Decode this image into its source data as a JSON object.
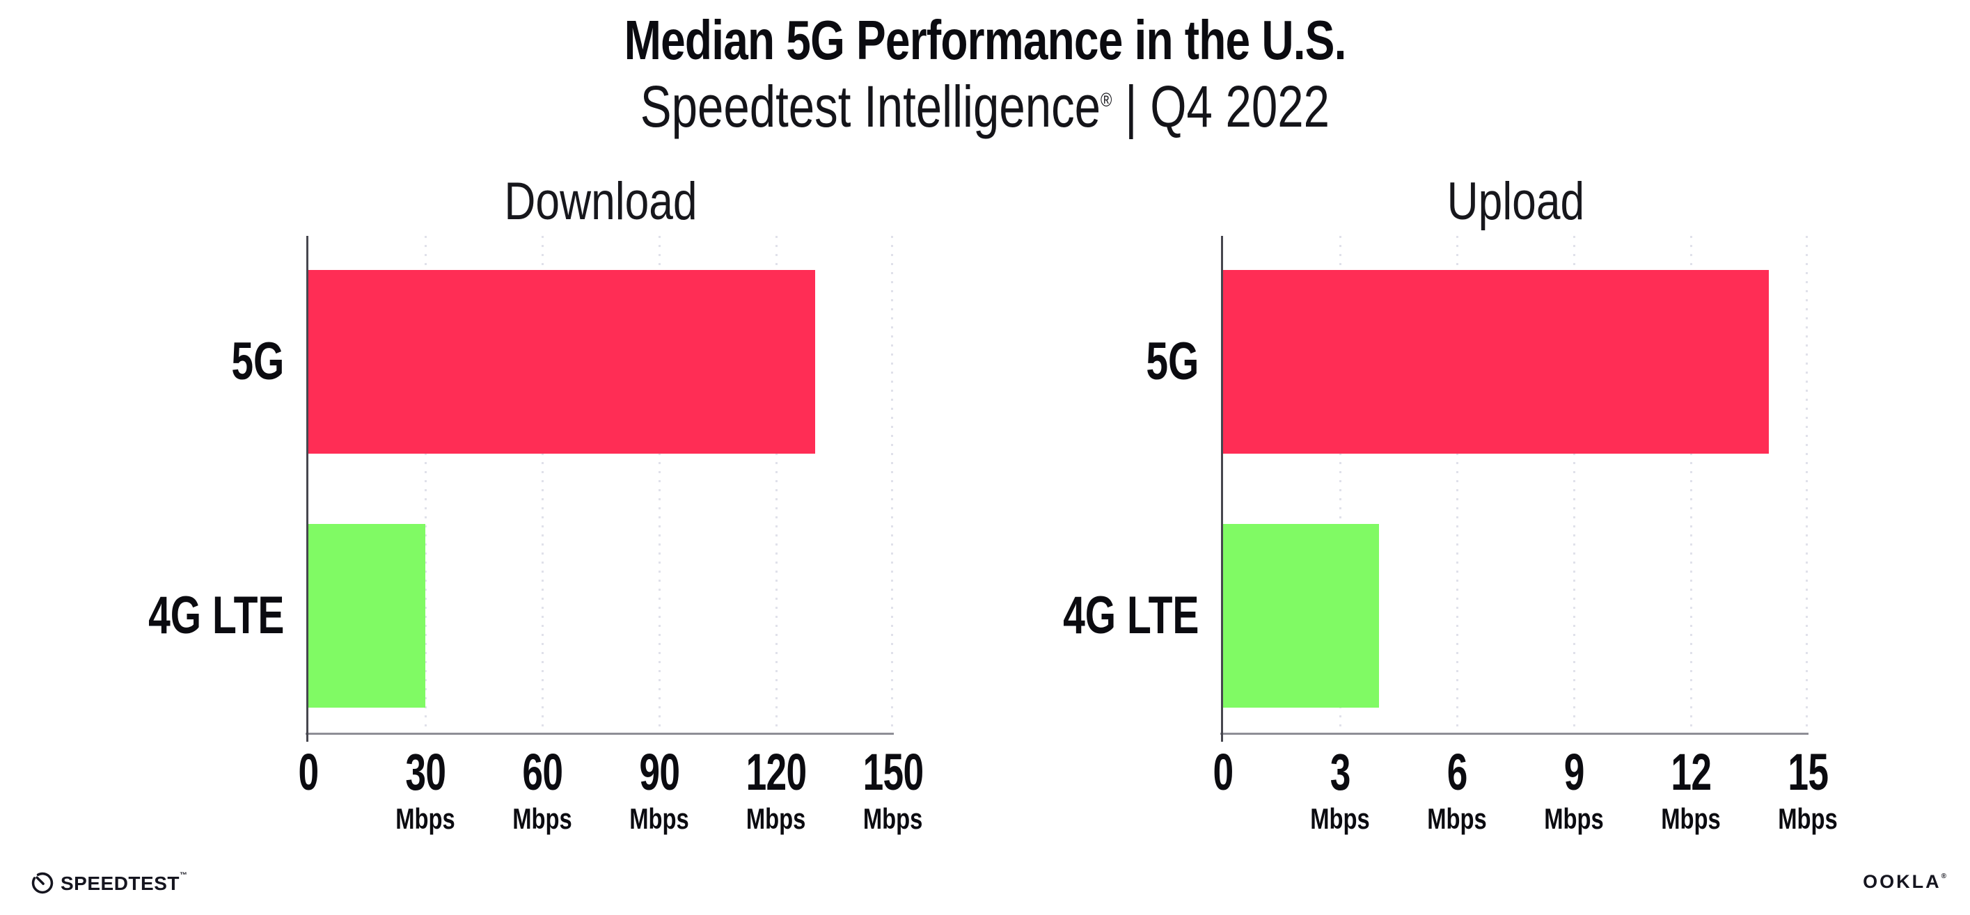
{
  "header": {
    "title": "Median 5G Performance in the U.S.",
    "subtitle_brand": "Speedtest Intelligence",
    "subtitle_reg": "®",
    "subtitle_rest": " | Q4 2022"
  },
  "chart_data": [
    {
      "type": "bar",
      "orientation": "horizontal",
      "title": "Download",
      "categories": [
        "5G",
        "4G LTE"
      ],
      "values": [
        130,
        30
      ],
      "unit": "Mbps",
      "xlim": [
        0,
        150
      ],
      "xticks": [
        0,
        30,
        60,
        90,
        120,
        150
      ],
      "bar_colors": [
        "#ff2d55",
        "#80fa64"
      ],
      "grid": "dotted vertical gridlines at each tick",
      "legend": "none"
    },
    {
      "type": "bar",
      "orientation": "horizontal",
      "title": "Upload",
      "categories": [
        "5G",
        "4G LTE"
      ],
      "values": [
        14,
        4
      ],
      "unit": "Mbps",
      "xlim": [
        0,
        15
      ],
      "xticks": [
        0,
        3,
        6,
        9,
        12,
        15
      ],
      "bar_colors": [
        "#ff2d55",
        "#80fa64"
      ],
      "grid": "dotted vertical gridlines at each tick",
      "legend": "none"
    }
  ],
  "footer": {
    "speedtest_logo_text": "SPEEDTEST",
    "speedtest_tm": "™",
    "ookla_logo_text": "OOKLA",
    "ookla_reg": "®"
  },
  "colors": {
    "bar_5g": "#ff2d55",
    "bar_4g_lte": "#80fa64",
    "x_axis_line": "#8e8e96",
    "y_axis_line": "#46464e",
    "gridline": "#e0e1ea",
    "text": "#0b0b10"
  }
}
